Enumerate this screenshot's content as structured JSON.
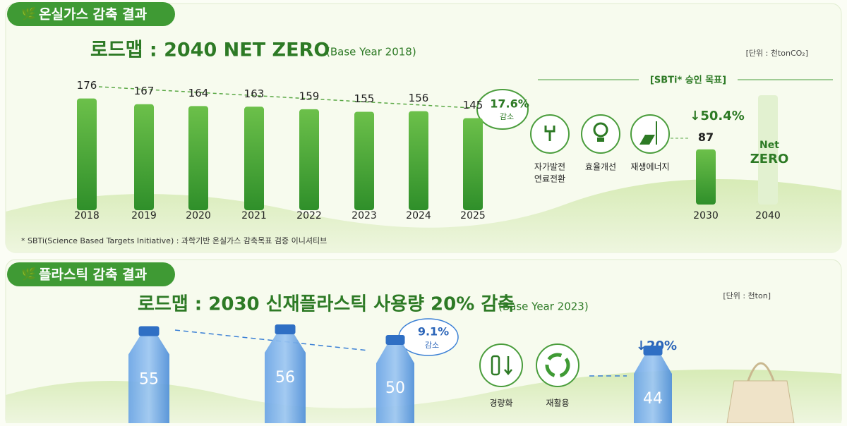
{
  "ghg": {
    "badge": "온실가스 감축 결과",
    "title": "로드맵 : 2040 NET ZERO",
    "base_year": "(Base Year 2018)",
    "unit": "[단위 : 천tonCO₂]",
    "years": [
      "2018",
      "2019",
      "2020",
      "2021",
      "2022",
      "2023",
      "2024",
      "2025"
    ],
    "values": [
      176,
      167,
      164,
      163,
      159,
      155,
      156,
      145
    ],
    "reduction": {
      "pct": "17.6%",
      "label": "감소"
    },
    "sbti_title": "[SBTi* 승인 목표]",
    "measures": [
      [
        "자가발전",
        "연료전환"
      ],
      [
        "효율개선"
      ],
      [
        "재생에너지"
      ]
    ],
    "target_change": "↓50.4%",
    "target_years": [
      "2030",
      "2040"
    ],
    "target_value": 87,
    "net_zero": [
      "Net",
      "ZERO"
    ],
    "footnote": "* SBTi(Science Based Targets Initiative) : 과학기반 온실가스 감축목표 검증 이니셔티브"
  },
  "plastic": {
    "badge": "플라스틱 감축 결과",
    "title": "로드맵 : 2030 신재플라스틱 사용량 20% 감축",
    "base_year": "(Base Year 2023)",
    "unit": "[단위 : 천ton]",
    "values": [
      55,
      56,
      50
    ],
    "reduction": {
      "pct": "9.1%",
      "label": "감소"
    },
    "measures": [
      "경량화",
      "재활용"
    ],
    "target_change": "↓20%",
    "target_value": 44
  }
}
